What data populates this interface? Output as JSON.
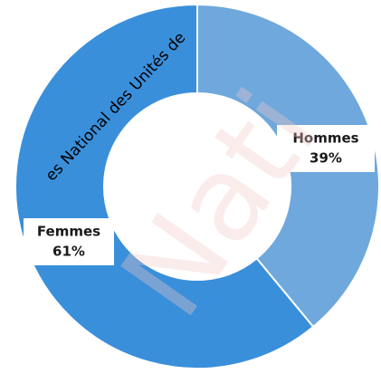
{
  "chart_data": {
    "type": "pie",
    "donut": true,
    "categories": [
      "Hommes",
      "Femmes"
    ],
    "values": [
      39,
      61
    ],
    "value_labels": [
      "39%",
      "61%"
    ],
    "colors": [
      "#6fa8dc",
      "#3a8fdb"
    ],
    "annotations": [
      "es National des Unités de",
      "Nati"
    ]
  }
}
